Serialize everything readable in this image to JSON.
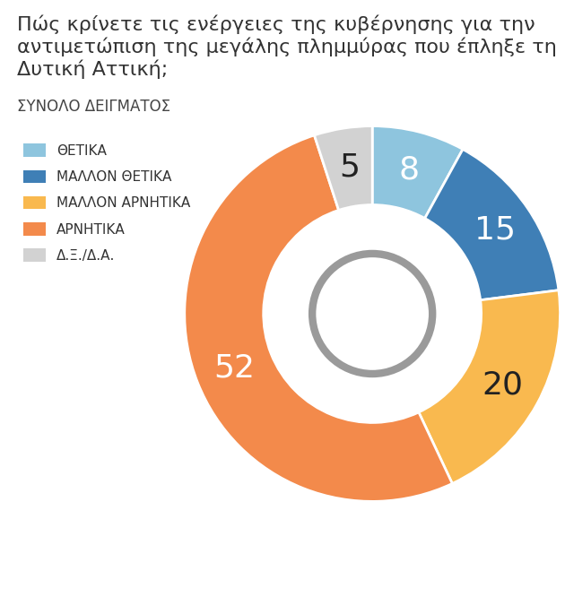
{
  "chart_data": {
    "type": "pie",
    "title": "Πώς κρίνετε τις ενέργειες της κυβέρνησης για την αντιμετώπιση της μεγάλης πλημμύρας που έπληξε τη Δυτική Αττική;",
    "subtitle": "ΣΥΝΟΛΟ ΔΕΙΓΜΑΤΟΣ",
    "categories": [
      "ΘΕΤΙΚΑ",
      "ΜΑΛΛΟΝ ΘΕΤΙΚΑ",
      "ΜΑΛΛΟΝ ΑΡΝΗΤΙΚΑ",
      "ΑΡΝΗΤΙΚΑ",
      "Δ.Ξ./Δ.Α."
    ],
    "values": [
      8,
      15,
      20,
      52,
      5
    ],
    "colors": [
      "#8ec5de",
      "#3f7fb6",
      "#f9b94f",
      "#f38a4b",
      "#d2d2d2"
    ],
    "data_labels": true,
    "legend": "upper left"
  }
}
